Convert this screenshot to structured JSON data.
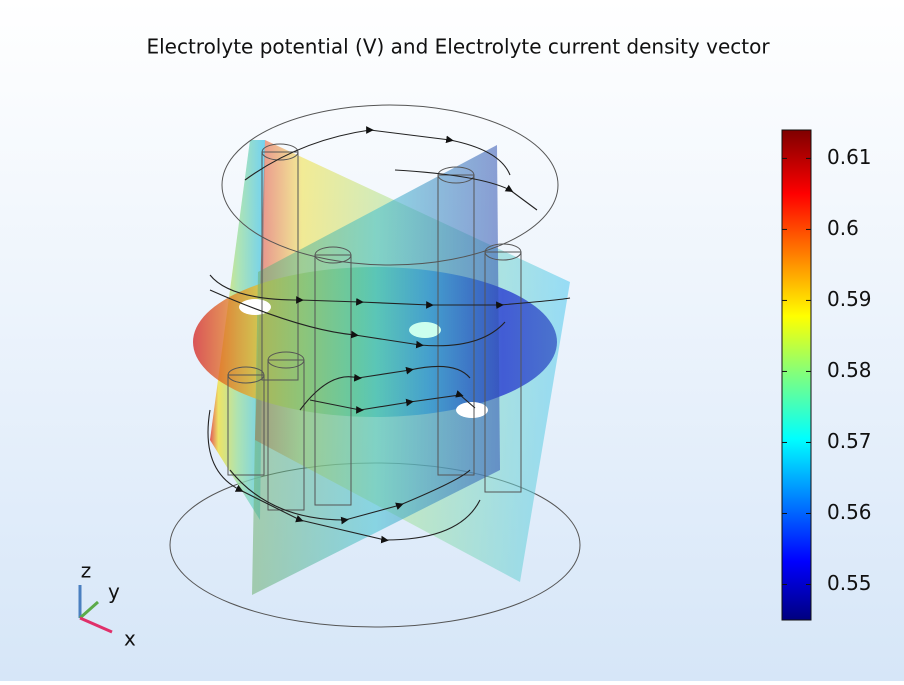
{
  "chart_data": {
    "type": "surface",
    "title": "Electrolyte potential (V) and Electrolyte current density vector",
    "clim": [
      0.545,
      0.614
    ],
    "cticks": [
      0.55,
      0.56,
      0.57,
      0.58,
      0.59,
      0.6,
      0.61
    ],
    "colormap": "rainbow",
    "axis_labels": [
      "x",
      "y",
      "z"
    ]
  }
}
